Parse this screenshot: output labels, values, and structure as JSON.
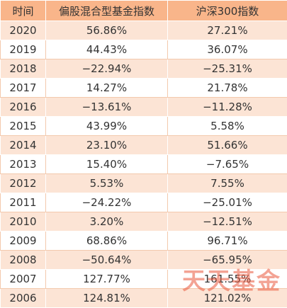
{
  "table": {
    "headers": [
      "时间",
      "偏股混合型基金指数",
      "沪深300指数"
    ],
    "rows": [
      [
        "2020",
        "56.86%",
        "27.21%"
      ],
      [
        "2019",
        "44.43%",
        "36.07%"
      ],
      [
        "2018",
        "−22.94%",
        "−25.31%"
      ],
      [
        "2017",
        "14.27%",
        "21.78%"
      ],
      [
        "2016",
        "−13.61%",
        "−11.28%"
      ],
      [
        "2015",
        "43.99%",
        "5.58%"
      ],
      [
        "2014",
        "23.10%",
        "51.66%"
      ],
      [
        "2013",
        "15.40%",
        "−7.65%"
      ],
      [
        "2012",
        "5.53%",
        "7.55%"
      ],
      [
        "2011",
        "−24.22%",
        "−25.01%"
      ],
      [
        "2010",
        "3.20%",
        "−12.51%"
      ],
      [
        "2009",
        "68.86%",
        "96.71%"
      ],
      [
        "2008",
        "−50.64%",
        "−65.95%"
      ],
      [
        "2007",
        "127.77%",
        "161.55%"
      ],
      [
        "2006",
        "124.81%",
        "121.02%"
      ]
    ]
  },
  "watermark": "天天基金",
  "colors": {
    "header_bg": "#f9b58a",
    "band_bg": "#fce4d5",
    "watermark": "#e9583c"
  }
}
